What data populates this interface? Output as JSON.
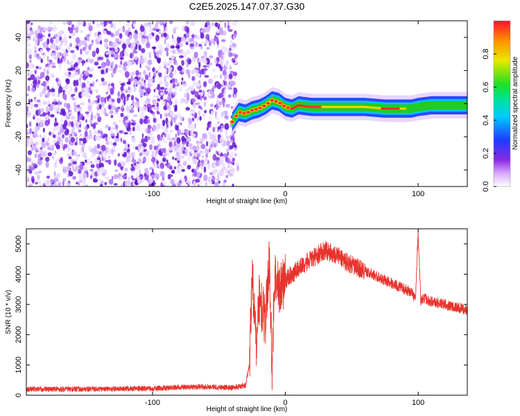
{
  "title": "C2E5.2025.147.07.37.G30",
  "colors": {
    "snr_line": "#e8332d",
    "scatter_fill": "#7a1fe0",
    "signal_core": "#ff2d2d",
    "signal_mid": "#22cc22",
    "signal_edge": "#1e40ff"
  },
  "chart_data": [
    {
      "type": "heatmap",
      "name": "spectrogram",
      "xlabel": "Height of straight line (km)",
      "ylabel": "Frequency (Hz)",
      "xlim": [
        -195,
        137
      ],
      "ylim": [
        -50,
        50
      ],
      "xticks": [
        "-100",
        "0",
        "100"
      ],
      "yticks": [
        "-40",
        "-20",
        "0",
        "20",
        "40"
      ],
      "colorbar": {
        "label": "Normalized spectral amplitude",
        "ticks": [
          "0.0",
          "0.2",
          "0.4",
          "0.6",
          "0.8"
        ],
        "range": [
          0,
          1
        ],
        "colormap": "rainbow (white to purple to blue to cyan to green to yellow to red)"
      },
      "noise_region": {
        "x_range": [
          -195,
          -37
        ],
        "freq_range": [
          -50,
          50
        ],
        "amplitude": 0.05
      },
      "signal_track": {
        "x": [
          -40,
          -35,
          -30,
          -25,
          -20,
          -15,
          -10,
          -5,
          0,
          5,
          10,
          20,
          40,
          60,
          75,
          85,
          95,
          100,
          110,
          120,
          137
        ],
        "freq": [
          -11,
          -5,
          -6,
          -4,
          -3,
          -1,
          2,
          1,
          -2,
          -3,
          -1,
          -2,
          -2,
          -2,
          -3,
          -3,
          -3,
          -2,
          -1,
          -1,
          -1
        ],
        "peak_amplitude": [
          0.35,
          0.5,
          0.6,
          0.7,
          0.75,
          0.85,
          0.95,
          0.9,
          1.0,
          1.0,
          0.95,
          0.95,
          0.9,
          0.85,
          0.95,
          1.0,
          0.6,
          0.5,
          0.4,
          0.35,
          0.3
        ]
      }
    },
    {
      "type": "line",
      "name": "snr",
      "xlabel": "Height of straight line (km)",
      "ylabel": "SNR (10 * v/v)",
      "xlim": [
        -195,
        137
      ],
      "ylim": [
        0,
        5500
      ],
      "xticks": [
        "-100",
        "0",
        "100"
      ],
      "yticks": [
        "0",
        "1000",
        "2000",
        "3000",
        "4000",
        "5000"
      ],
      "series": [
        {
          "x": [
            -195,
            -150,
            -100,
            -80,
            -60,
            -40,
            -30,
            -27,
            -25,
            -22,
            -20,
            -15,
            -12,
            -10,
            -8,
            -5,
            0,
            10,
            20,
            30,
            40,
            50,
            60,
            70,
            80,
            90,
            95,
            98,
            100,
            102,
            105,
            110,
            120,
            130,
            137
          ],
          "y": [
            200,
            200,
            220,
            260,
            280,
            250,
            320,
            1000,
            4200,
            1500,
            3200,
            2500,
            4500,
            900,
            4000,
            3500,
            3800,
            4200,
            4500,
            4800,
            4600,
            4300,
            4100,
            3900,
            3700,
            3500,
            3400,
            3200,
            5400,
            3100,
            3200,
            3100,
            3000,
            2900,
            2800
          ]
        }
      ]
    }
  ]
}
